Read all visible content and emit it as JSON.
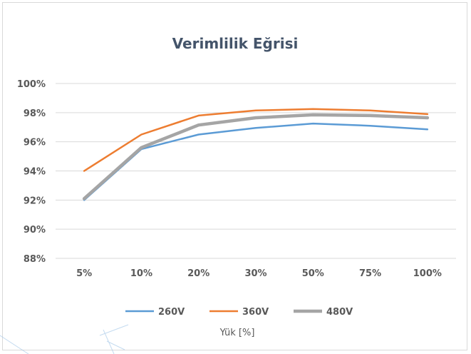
{
  "chart_data": {
    "type": "line",
    "title": "Verimlilik Eğrisi",
    "xlabel": "Yük [%]",
    "ylabel": "",
    "categories": [
      "5%",
      "10%",
      "20%",
      "30%",
      "50%",
      "75%",
      "100%"
    ],
    "ylim": [
      88,
      100
    ],
    "yticks": [
      88,
      90,
      92,
      94,
      96,
      98,
      100
    ],
    "ytick_labels": [
      "88%",
      "90%",
      "92%",
      "94%",
      "96%",
      "98%",
      "100%"
    ],
    "grid": true,
    "legend_position": "bottom",
    "series": [
      {
        "name": "260V",
        "color": "#5b9bd5",
        "values": [
          92.0,
          95.5,
          96.5,
          96.95,
          97.25,
          97.1,
          96.85
        ]
      },
      {
        "name": "360V",
        "color": "#ed7d31",
        "values": [
          94.0,
          96.5,
          97.8,
          98.15,
          98.25,
          98.15,
          97.9
        ]
      },
      {
        "name": "480V",
        "color": "#a5a5a5",
        "values": [
          92.1,
          95.6,
          97.15,
          97.65,
          97.85,
          97.8,
          97.65
        ]
      }
    ]
  }
}
